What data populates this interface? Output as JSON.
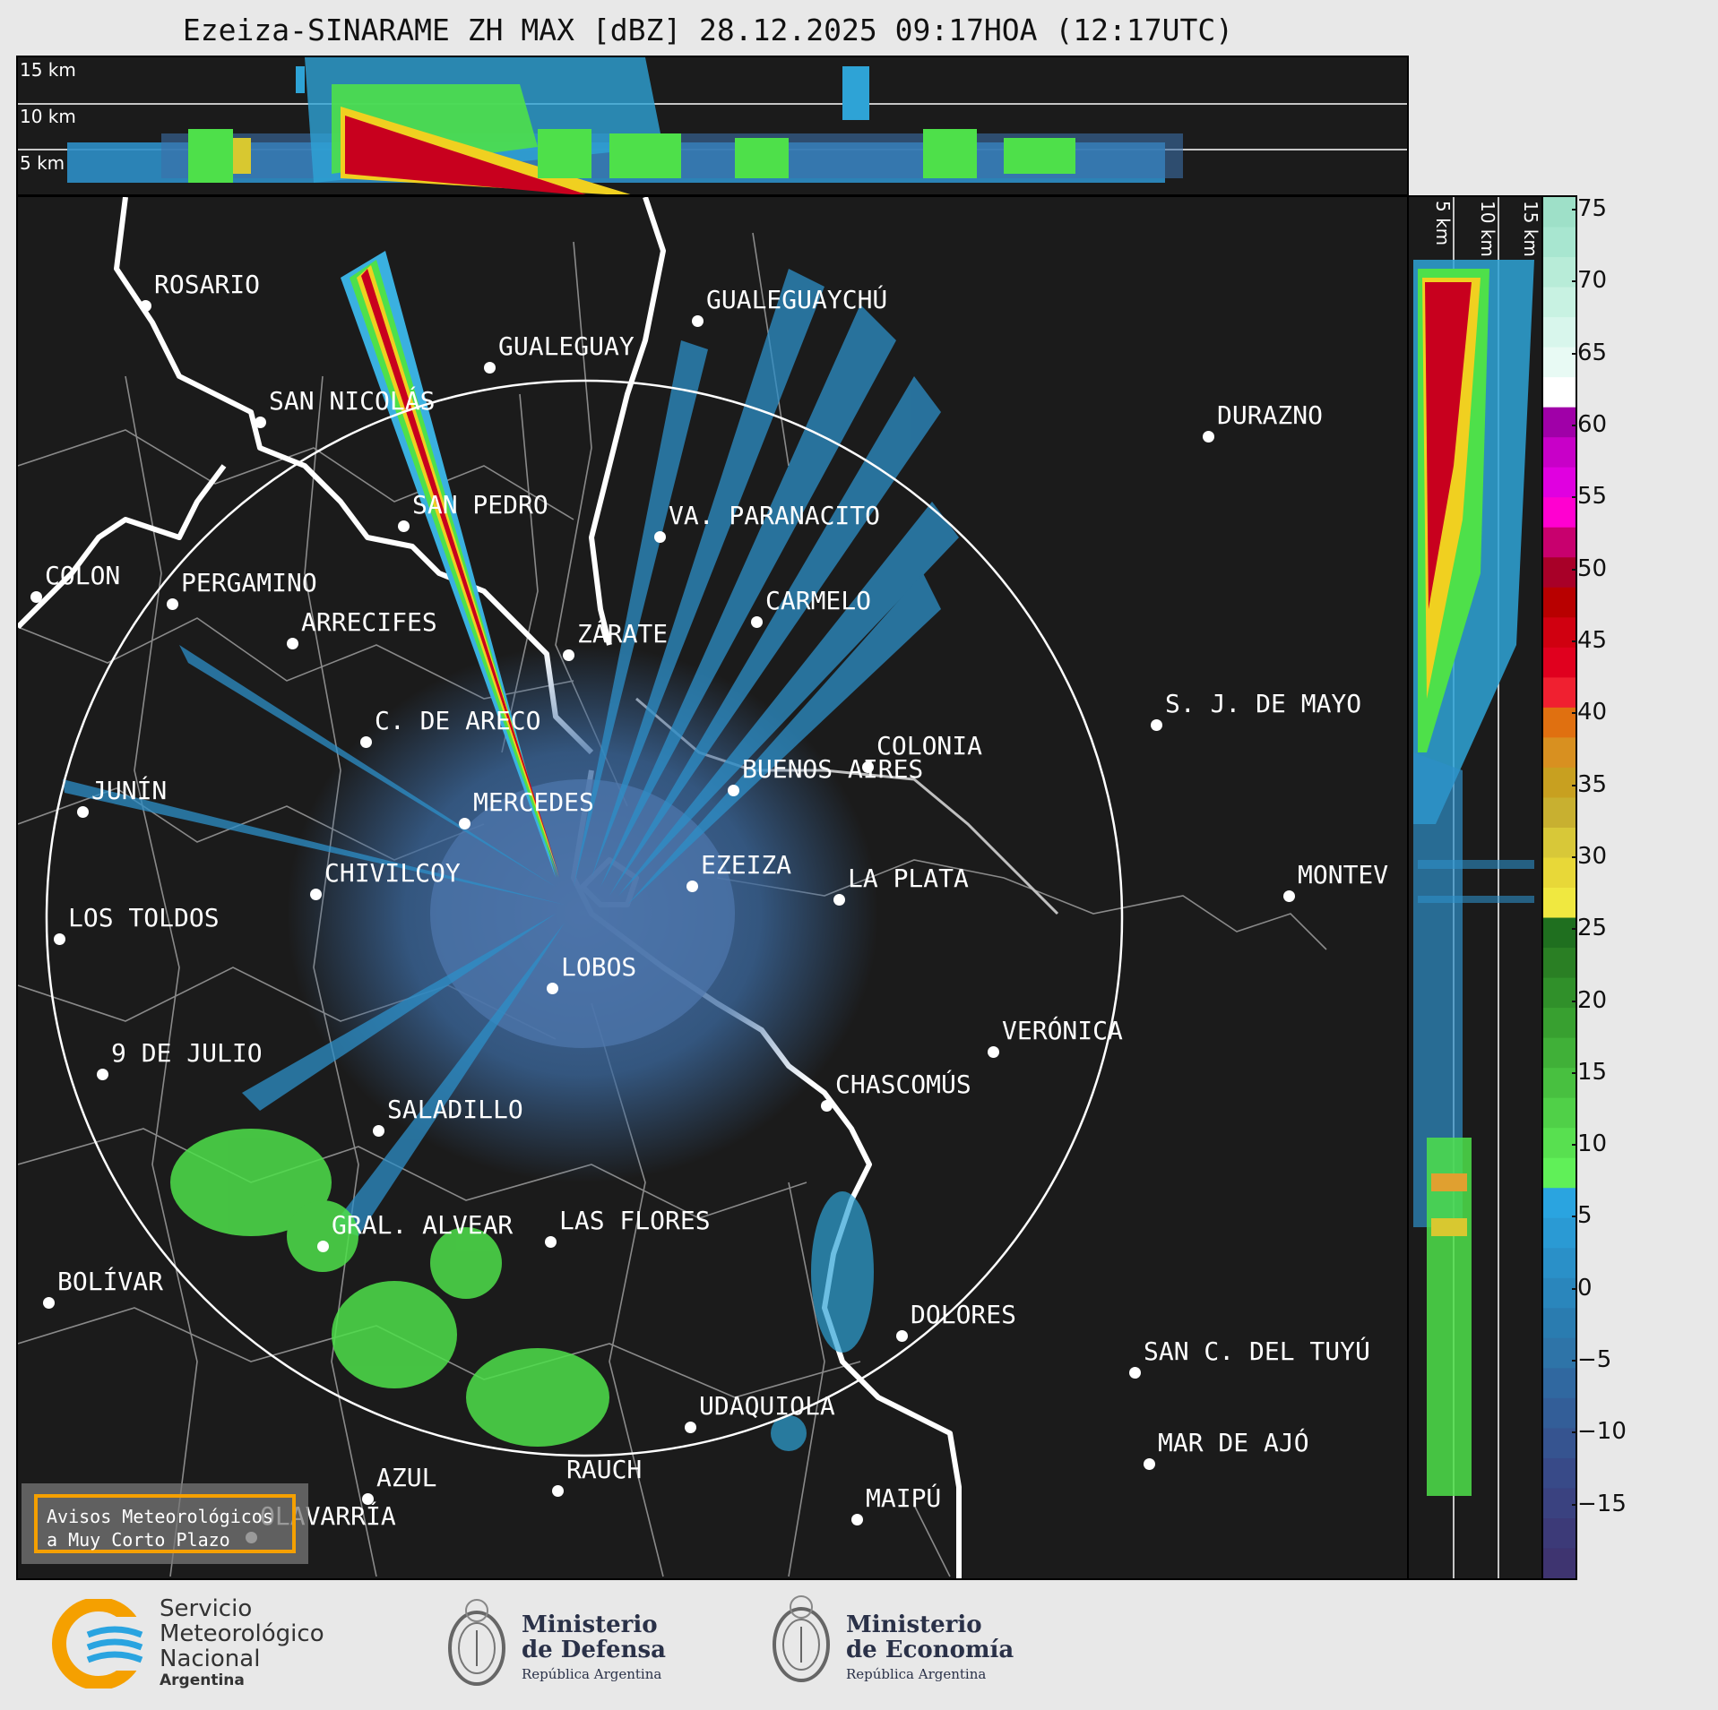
{
  "title": "Ezeiza-SINARAME ZH MAX [dBZ] 28.12.2025 09:17HOA (12:17UTC)",
  "altitude_labels": [
    "15 km",
    "10 km",
    "5 km"
  ],
  "side_altitude_labels": [
    "5 km",
    "10 km",
    "15 km"
  ],
  "colorbar": {
    "ticks": [
      "75",
      "70",
      "65",
      "60",
      "55",
      "50",
      "45",
      "40",
      "35",
      "30",
      "25",
      "20",
      "15",
      "10",
      "5",
      "0",
      "−5",
      "−10",
      "−15"
    ],
    "min": -20,
    "max": 76
  },
  "cities": [
    {
      "name": "ROSARIO"
    },
    {
      "name": "GUALEGUAYCHÚ"
    },
    {
      "name": "GUALEGUAY"
    },
    {
      "name": "SAN NICOLÁS"
    },
    {
      "name": "DURAZNO"
    },
    {
      "name": "SAN PEDRO"
    },
    {
      "name": "VA. PARANACITO"
    },
    {
      "name": "COLON"
    },
    {
      "name": "PERGAMINO"
    },
    {
      "name": "CARMELO"
    },
    {
      "name": "ARRECIFES"
    },
    {
      "name": "ZÁRATE"
    },
    {
      "name": "S. J. DE MAYO"
    },
    {
      "name": "C. DE ARECO"
    },
    {
      "name": "COLONIA"
    },
    {
      "name": "JUNÍN"
    },
    {
      "name": "BUENOS AIRES"
    },
    {
      "name": "MERCEDES"
    },
    {
      "name": "EZEIZA"
    },
    {
      "name": "MONTEV"
    },
    {
      "name": "CHIVILCOY"
    },
    {
      "name": "LA PLATA"
    },
    {
      "name": "LOS TOLDOS"
    },
    {
      "name": "LOBOS"
    },
    {
      "name": "VERÓNICA"
    },
    {
      "name": "9 DE JULIO"
    },
    {
      "name": "CHASCOMÚS"
    },
    {
      "name": "SALADILLO"
    },
    {
      "name": "GRAL. ALVEAR"
    },
    {
      "name": "LAS FLORES"
    },
    {
      "name": "BOLÍVAR"
    },
    {
      "name": "DOLORES"
    },
    {
      "name": "SAN C. DEL TUYÚ"
    },
    {
      "name": "UDAQUIOLA"
    },
    {
      "name": "MAR DE AJÓ"
    },
    {
      "name": "AZUL"
    },
    {
      "name": "RAUCH"
    },
    {
      "name": "MAIPÚ"
    },
    {
      "name": "OLAVARRÍA"
    }
  ],
  "avisos": {
    "line1": "Avisos Meteorológicos",
    "line2": "a Muy Corto Plazo"
  },
  "logos": {
    "smn": {
      "line1": "Servicio",
      "line2": "Meteorológico",
      "line3": "Nacional",
      "line4": "Argentina"
    },
    "defensa": {
      "line1": "Ministerio",
      "line2": "de Defensa",
      "line3": "República Argentina"
    },
    "economia": {
      "line1": "Ministerio",
      "line2": "de Economía",
      "line3": "República Argentina"
    }
  },
  "colors": {
    "background": "#1b1b1b",
    "range_ring": "#ffffff",
    "echo_low": "#3c6fa8",
    "echo_mid": "#2ea3d6",
    "echo_green": "#4ee04a",
    "echo_red": "#c8001e",
    "accent": "#f5a000"
  }
}
